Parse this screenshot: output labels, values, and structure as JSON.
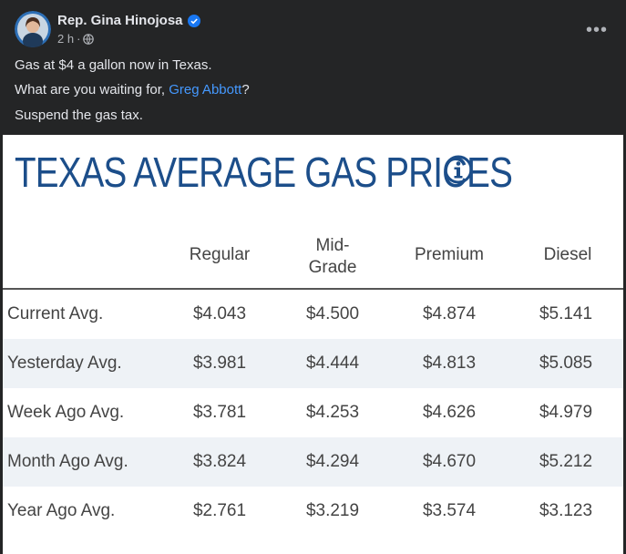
{
  "post": {
    "author": "Rep. Gina Hinojosa",
    "time": "2 h",
    "separator": "·",
    "lines": [
      {
        "text": "Gas at $4 a gallon now in Texas."
      },
      {
        "prefix": "What are you waiting for, ",
        "mention": "Greg Abbott",
        "suffix": "?"
      },
      {
        "text": "Suspend the gas tax."
      }
    ],
    "more": "•••"
  },
  "card": {
    "title": "TEXAS AVERAGE GAS PRICES",
    "columns": [
      "Regular",
      "Mid-\nGrade",
      "Premium",
      "Diesel"
    ],
    "rows": [
      {
        "label": "Current Avg.",
        "values": [
          "$4.043",
          "$4.500",
          "$4.874",
          "$5.141"
        ]
      },
      {
        "label": "Yesterday Avg.",
        "values": [
          "$3.981",
          "$4.444",
          "$4.813",
          "$5.085"
        ]
      },
      {
        "label": "Week Ago Avg.",
        "values": [
          "$3.781",
          "$4.253",
          "$4.626",
          "$4.979"
        ]
      },
      {
        "label": "Month Ago Avg.",
        "values": [
          "$3.824",
          "$4.294",
          "$4.670",
          "$5.212"
        ]
      },
      {
        "label": "Year Ago Avg.",
        "values": [
          "$2.761",
          "$3.219",
          "$3.574",
          "$3.123"
        ]
      }
    ]
  },
  "colors": {
    "title": "#1c4e8a",
    "mention": "#4599ff",
    "background": "#242526"
  },
  "icons": [
    "verified-badge-icon",
    "globe-icon",
    "more-options-icon",
    "info-icon"
  ]
}
